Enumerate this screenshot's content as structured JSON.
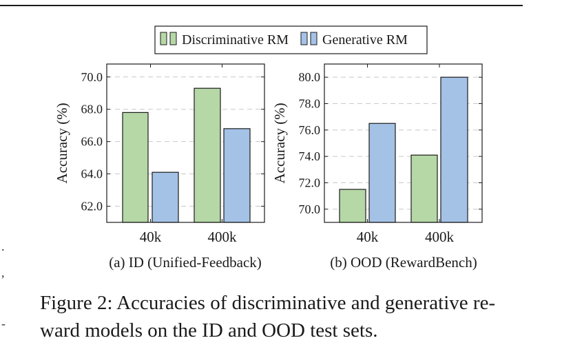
{
  "legend": {
    "items": [
      {
        "label": "Discriminative RM",
        "color": "#b5d8a6"
      },
      {
        "label": "Generative RM",
        "color": "#a4c2e6"
      }
    ]
  },
  "chart_data": [
    {
      "type": "bar",
      "subtitle": "(a) ID (Unified-Feedback)",
      "ylabel": "Accuracy (%)",
      "xlabel": "",
      "categories": [
        "40k",
        "400k"
      ],
      "series": [
        {
          "name": "Discriminative RM",
          "values": [
            67.8,
            69.3
          ],
          "color": "#b5d8a6"
        },
        {
          "name": "Generative RM",
          "values": [
            64.1,
            66.8
          ],
          "color": "#a4c2e6"
        }
      ],
      "ylim": [
        61.0,
        70.8
      ],
      "yticks": [
        "62.0",
        "64.0",
        "66.0",
        "68.0",
        "70.0"
      ],
      "grid": "horizontal dashed",
      "legend_position": "top-center"
    },
    {
      "type": "bar",
      "subtitle": "(b) OOD (RewardBench)",
      "ylabel": "Accuracy (%)",
      "xlabel": "",
      "categories": [
        "40k",
        "400k"
      ],
      "series": [
        {
          "name": "Discriminative RM",
          "values": [
            71.5,
            74.1
          ],
          "color": "#b5d8a6"
        },
        {
          "name": "Generative RM",
          "values": [
            76.5,
            80.0
          ],
          "color": "#a4c2e6"
        }
      ],
      "ylim": [
        69.0,
        81.0
      ],
      "yticks": [
        "70.0",
        "72.0",
        "74.0",
        "76.0",
        "78.0",
        "80.0"
      ],
      "grid": "horizontal dashed",
      "legend_position": "top-center"
    }
  ],
  "caption": {
    "line1": "Figure 2: Accuracies of discriminative and generative re-",
    "line2": "ward models on the ID and OOD test sets."
  },
  "margin_marks": [
    ".",
    ",",
    "-"
  ]
}
